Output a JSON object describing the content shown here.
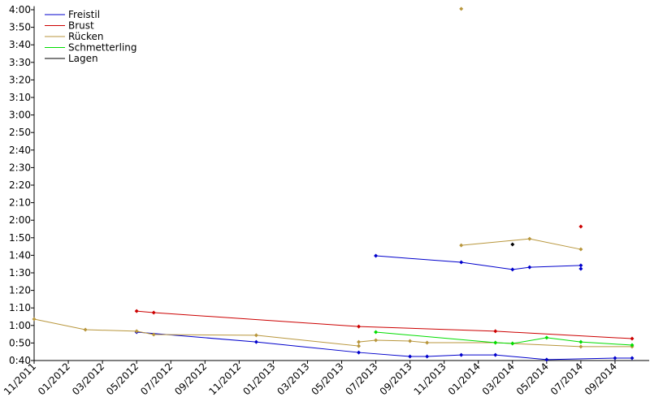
{
  "chart_data": {
    "type": "line",
    "xlim": [
      "2011-11",
      "2014-11"
    ],
    "ylim": [
      40,
      242
    ],
    "xticks": [
      {
        "value": "2011-11",
        "label": "11/2011"
      },
      {
        "value": "2012-01",
        "label": "01/2012"
      },
      {
        "value": "2012-03",
        "label": "03/2012"
      },
      {
        "value": "2012-05",
        "label": "05/2012"
      },
      {
        "value": "2012-07",
        "label": "07/2012"
      },
      {
        "value": "2012-09",
        "label": "09/2012"
      },
      {
        "value": "2012-11",
        "label": "11/2012"
      },
      {
        "value": "2013-01",
        "label": "01/2013"
      },
      {
        "value": "2013-03",
        "label": "03/2013"
      },
      {
        "value": "2013-05",
        "label": "05/2013"
      },
      {
        "value": "2013-07",
        "label": "07/2013"
      },
      {
        "value": "2013-09",
        "label": "09/2013"
      },
      {
        "value": "2013-11",
        "label": "11/2013"
      },
      {
        "value": "2014-01",
        "label": "01/2014"
      },
      {
        "value": "2014-03",
        "label": "03/2014"
      },
      {
        "value": "2014-05",
        "label": "05/2014"
      },
      {
        "value": "2014-07",
        "label": "07/2014"
      },
      {
        "value": "2014-09",
        "label": "09/2014"
      }
    ],
    "yticks": [
      {
        "value": 40,
        "label": "0:40"
      },
      {
        "value": 50,
        "label": "0:50"
      },
      {
        "value": 60,
        "label": "1:00"
      },
      {
        "value": 70,
        "label": "1:10"
      },
      {
        "value": 80,
        "label": "1:20"
      },
      {
        "value": 90,
        "label": "1:30"
      },
      {
        "value": 100,
        "label": "1:40"
      },
      {
        "value": 110,
        "label": "1:50"
      },
      {
        "value": 120,
        "label": "2:00"
      },
      {
        "value": 130,
        "label": "2:10"
      },
      {
        "value": 140,
        "label": "2:20"
      },
      {
        "value": 150,
        "label": "2:30"
      },
      {
        "value": 160,
        "label": "2:40"
      },
      {
        "value": 170,
        "label": "2:50"
      },
      {
        "value": 180,
        "label": "3:00"
      },
      {
        "value": 190,
        "label": "3:10"
      },
      {
        "value": 200,
        "label": "3:20"
      },
      {
        "value": 210,
        "label": "3:30"
      },
      {
        "value": 220,
        "label": "3:40"
      },
      {
        "value": 230,
        "label": "3:50"
      },
      {
        "value": 240,
        "label": "4:00"
      }
    ],
    "legend": "upper-left",
    "grid": false,
    "series": [
      {
        "name": "Freistil",
        "color": "#0000cc",
        "x": [
          "2012-05",
          "2012-12",
          "2013-06",
          "2013-09",
          "2013-10",
          "2013-12",
          "2014-02",
          "2014-05",
          "2014-09",
          "2014-10",
          null,
          "2013-07",
          "2013-12",
          "2014-03",
          "2014-04",
          "2014-07",
          "2014-07"
        ],
        "values": [
          56.2,
          50.6,
          44.6,
          42.3,
          42.3,
          43.2,
          43.2,
          40.5,
          41.4,
          41.4,
          null,
          99.7,
          96.0,
          91.9,
          93.2,
          94.2,
          92.3
        ]
      },
      {
        "name": "Brust",
        "color": "#cc0000",
        "x": [
          "2012-05",
          "2012-06",
          "2013-06",
          "2014-02",
          "2014-10",
          null,
          "2014-07"
        ],
        "values": [
          68.2,
          67.3,
          59.4,
          56.7,
          52.5,
          null,
          116.4
        ]
      },
      {
        "name": "Rücken",
        "color": "#b8963c",
        "x": [
          "2011-11",
          "2012-02",
          "2012-05",
          "2012-06",
          "2012-12",
          "2013-06",
          "2013-06",
          "2013-07",
          "2013-09",
          "2013-10",
          "2014-02",
          "2014-03",
          "2014-07",
          "2014-10",
          null,
          "2013-12",
          "2014-04",
          "2014-07",
          null,
          "2013-12"
        ],
        "values": [
          63.6,
          57.6,
          56.7,
          54.8,
          54.4,
          48.3,
          50.6,
          51.6,
          51.1,
          50.2,
          50.2,
          49.7,
          47.9,
          47.9,
          null,
          105.7,
          109.4,
          103.4,
          null,
          240.5
        ]
      },
      {
        "name": "Schmetterling",
        "color": "#00dd00",
        "x": [
          "2013-07",
          "2014-02",
          "2014-03",
          "2014-05",
          "2014-07",
          "2014-10"
        ],
        "values": [
          56.2,
          50.2,
          49.7,
          53.0,
          50.6,
          48.8
        ]
      },
      {
        "name": "Lagen",
        "color": "#000000",
        "x": [
          "2014-03"
        ],
        "values": [
          106.2
        ]
      }
    ]
  }
}
